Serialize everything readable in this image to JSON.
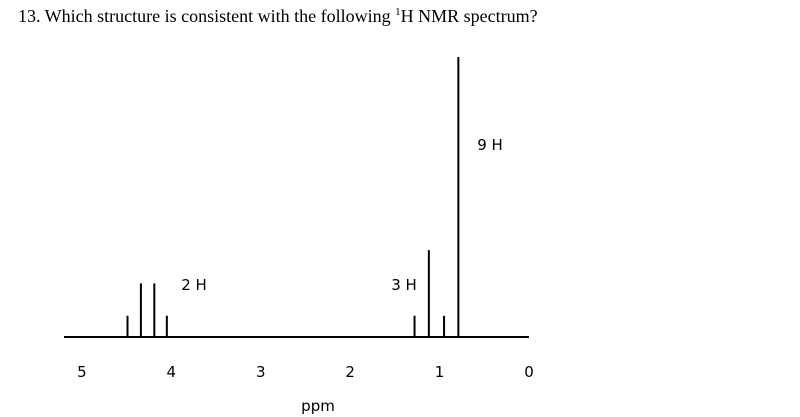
{
  "chart_data": {
    "type": "stick",
    "title": "13.  Which structure is consistent with the following ",
    "title_sup": "1",
    "title_end": "H NMR spectrum?",
    "x_label": "ppm",
    "x": [
      4.49,
      4.34,
      4.19,
      4.05,
      1.28,
      1.12,
      0.95,
      0.79
    ],
    "values": [
      21,
      53,
      53,
      21,
      21,
      86,
      21,
      277
    ],
    "color": "#000000",
    "xlim": [
      5.2,
      0
    ],
    "xticks": [
      5,
      4,
      3,
      2,
      1,
      0
    ],
    "ylim": [
      0,
      280
    ],
    "annotations": [
      "2 H",
      "3 H",
      "9 H"
    ]
  }
}
